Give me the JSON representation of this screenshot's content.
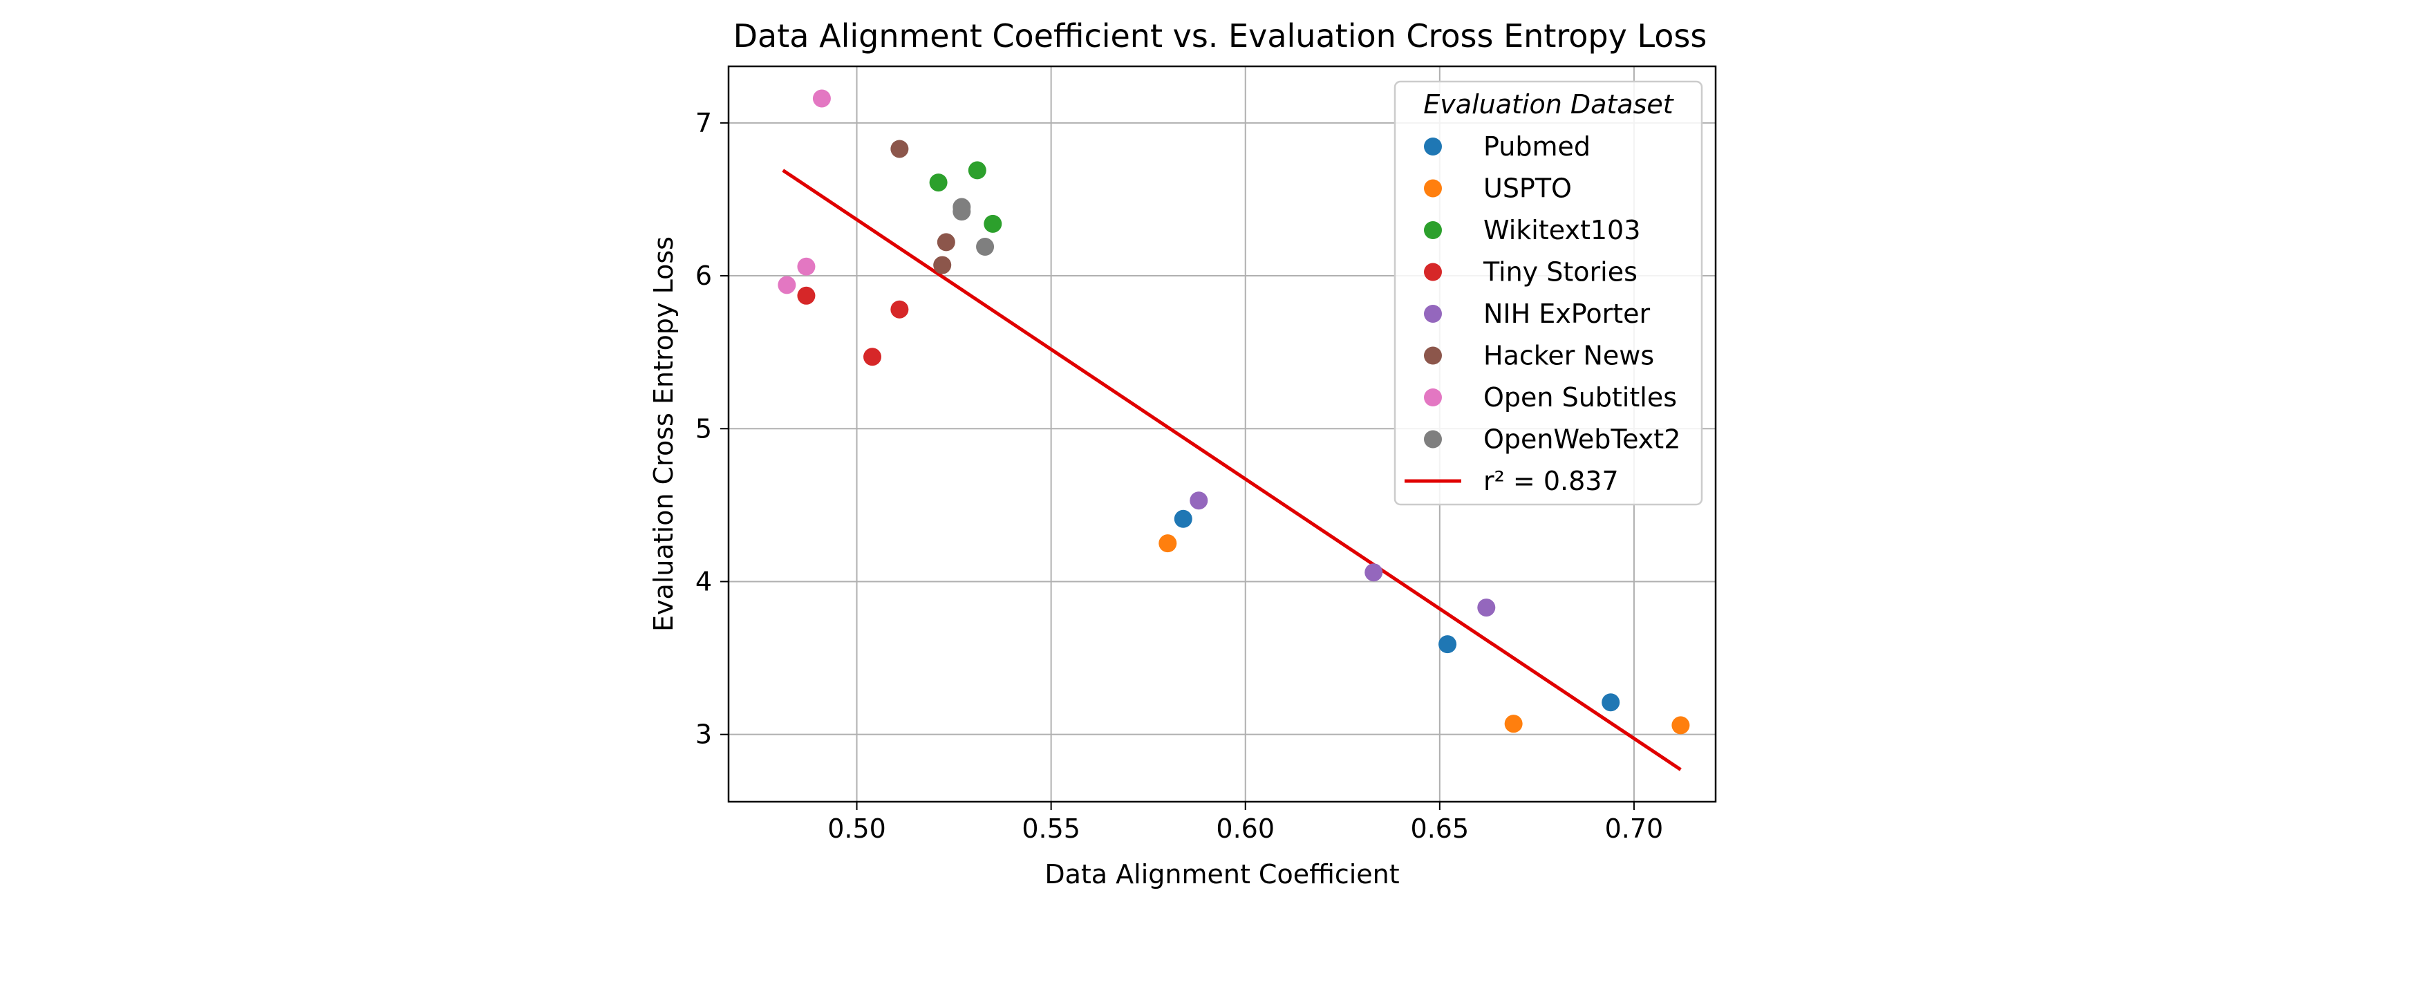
{
  "chart_data": {
    "type": "scatter",
    "title": "Data Alignment Coefficient vs. Evaluation Cross Entropy Loss",
    "xlabel": "Data Alignment Coefficient",
    "ylabel": "Evaluation Cross Entropy Loss",
    "xlim": [
      0.467,
      0.721
    ],
    "ylim": [
      2.56,
      7.37
    ],
    "xticks": [
      {
        "value": 0.5,
        "label": "0.50"
      },
      {
        "value": 0.55,
        "label": "0.55"
      },
      {
        "value": 0.6,
        "label": "0.60"
      },
      {
        "value": 0.65,
        "label": "0.65"
      },
      {
        "value": 0.7,
        "label": "0.70"
      }
    ],
    "yticks": [
      {
        "value": 3,
        "label": "3"
      },
      {
        "value": 4,
        "label": "4"
      },
      {
        "value": 5,
        "label": "5"
      },
      {
        "value": 6,
        "label": "6"
      },
      {
        "value": 7,
        "label": "7"
      }
    ],
    "grid": true,
    "legend": {
      "title": "Evaluation Dataset",
      "position": "top-right"
    },
    "series": [
      {
        "name": "Pubmed",
        "color": "#1f77b4",
        "points": [
          {
            "x": 0.584,
            "y": 4.41
          },
          {
            "x": 0.652,
            "y": 3.59
          },
          {
            "x": 0.694,
            "y": 3.21
          }
        ]
      },
      {
        "name": "USPTO",
        "color": "#ff7f0e",
        "points": [
          {
            "x": 0.58,
            "y": 4.25
          },
          {
            "x": 0.669,
            "y": 3.07
          },
          {
            "x": 0.712,
            "y": 3.06
          }
        ]
      },
      {
        "name": "Wikitext103",
        "color": "#2ca02c",
        "points": [
          {
            "x": 0.521,
            "y": 6.61
          },
          {
            "x": 0.531,
            "y": 6.69
          },
          {
            "x": 0.535,
            "y": 6.34
          }
        ]
      },
      {
        "name": "Tiny Stories",
        "color": "#d62728",
        "points": [
          {
            "x": 0.487,
            "y": 5.87
          },
          {
            "x": 0.504,
            "y": 5.47
          },
          {
            "x": 0.511,
            "y": 5.78
          }
        ]
      },
      {
        "name": "NIH ExPorter",
        "color": "#9467bd",
        "points": [
          {
            "x": 0.588,
            "y": 4.53
          },
          {
            "x": 0.633,
            "y": 4.06
          },
          {
            "x": 0.662,
            "y": 3.83
          }
        ]
      },
      {
        "name": "Hacker News",
        "color": "#8c564b",
        "points": [
          {
            "x": 0.511,
            "y": 6.83
          },
          {
            "x": 0.522,
            "y": 6.07
          },
          {
            "x": 0.523,
            "y": 6.22
          }
        ]
      },
      {
        "name": "Open Subtitles",
        "color": "#e377c2",
        "points": [
          {
            "x": 0.482,
            "y": 5.94
          },
          {
            "x": 0.487,
            "y": 6.06
          },
          {
            "x": 0.491,
            "y": 7.16
          }
        ]
      },
      {
        "name": "OpenWebText2",
        "color": "#7f7f7f",
        "points": [
          {
            "x": 0.527,
            "y": 6.45
          },
          {
            "x": 0.527,
            "y": 6.42
          },
          {
            "x": 0.533,
            "y": 6.19
          }
        ]
      }
    ],
    "fit_line": {
      "label": "r² = 0.837",
      "color": "#e00000",
      "points": [
        {
          "x": 0.481,
          "y": 6.69
        },
        {
          "x": 0.712,
          "y": 2.77
        }
      ]
    }
  }
}
